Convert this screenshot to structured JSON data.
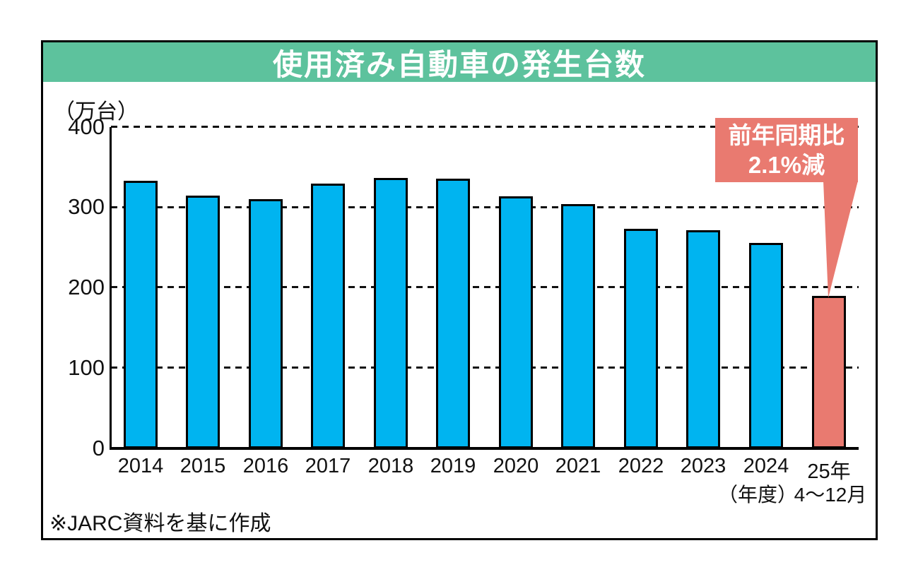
{
  "title": "使用済み自動車の発生台数",
  "y_axis": {
    "unit_label": "（万台）",
    "ticks": [
      "400",
      "300",
      "200",
      "100",
      "0"
    ]
  },
  "callout": {
    "line1": "前年同期比",
    "line2": "2.1%減"
  },
  "footer_note": "※JARC資料を基に作成",
  "colors": {
    "header_green": "#5DC29D",
    "bar_cyan": "#00B4F0",
    "bar_salmon": "#E97A70",
    "callout_salmon": "#E97A70"
  },
  "chart_data": {
    "type": "bar",
    "title": "使用済み自動車の発生台数",
    "ylabel": "（万台）",
    "ylim": [
      0,
      400
    ],
    "yticks": [
      0,
      100,
      200,
      300,
      400
    ],
    "grid": "dashed horizontal gridlines at 100,200,300,400",
    "legend": "none",
    "categories": [
      "2014",
      "2015",
      "2016",
      "2017",
      "2018",
      "2019",
      "2020",
      "2021",
      "2022",
      "2023",
      "2024",
      "25年"
    ],
    "x_sublabels": [
      "",
      "",
      "",
      "",
      "",
      "",
      "",
      "",
      "",
      "",
      "（年度）",
      "4〜12月"
    ],
    "values": [
      333,
      315,
      310,
      330,
      337,
      336,
      314,
      304,
      273,
      272,
      256,
      190
    ],
    "bar_colors": [
      "#00B4F0",
      "#00B4F0",
      "#00B4F0",
      "#00B4F0",
      "#00B4F0",
      "#00B4F0",
      "#00B4F0",
      "#00B4F0",
      "#00B4F0",
      "#00B4F0",
      "#00B4F0",
      "#E97A70"
    ],
    "annotation": {
      "target": "25年 4〜12月",
      "text": "前年同期比 2.1%減"
    },
    "source_note": "※JARC資料を基に作成"
  }
}
